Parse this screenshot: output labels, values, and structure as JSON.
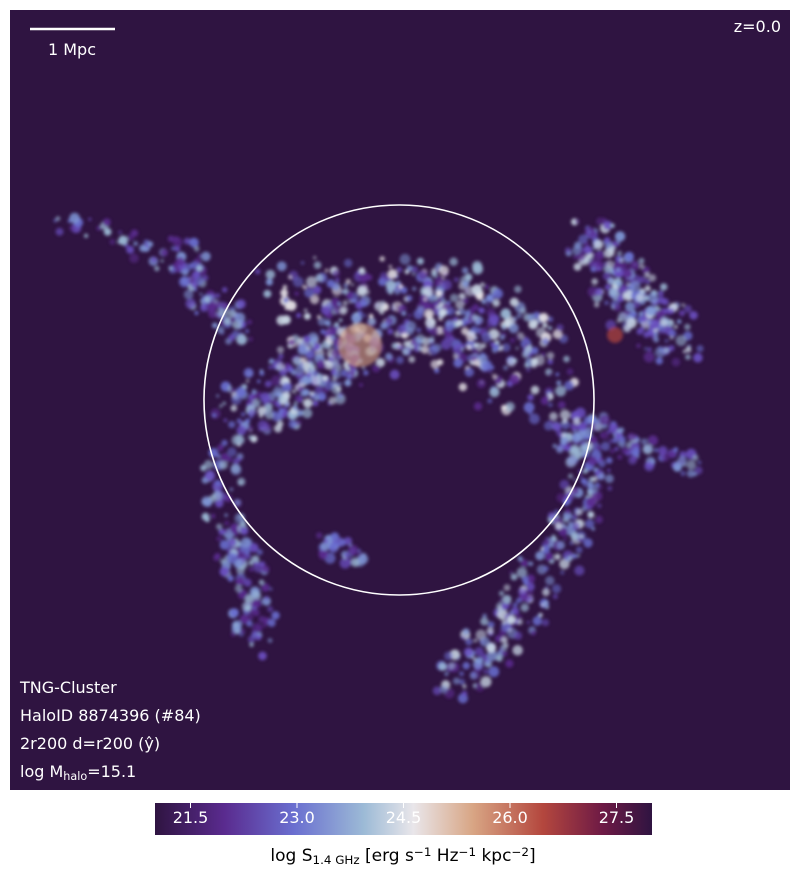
{
  "image": {
    "redshift": "z=0.0",
    "scale_bar": "1 Mpc",
    "annotations": [
      "TNG-Cluster",
      "HaloID 8874396 (#84)",
      "2r200 d=r200 (ŷ)"
    ],
    "mass_label": [
      {
        "text": "log M",
        "style": "normal"
      },
      {
        "text": "halo",
        "style": "sub"
      },
      {
        "text": "=15.1",
        "style": "normal"
      }
    ]
  },
  "colorbar": {
    "lim": [
      21,
      28
    ],
    "ticks": [
      21.5,
      {
        "value": 23,
        "label": "23.0"
      },
      24.5,
      {
        "value": 26,
        "label": "26.0"
      },
      27.5
    ],
    "label": [
      {
        "text": "log S",
        "style": "normal"
      },
      {
        "text": "1.4 GHz",
        "style": "sub"
      },
      {
        "text": " [erg s",
        "style": "normal"
      },
      {
        "text": "−1",
        "style": "sup"
      },
      {
        "text": " Hz",
        "style": "normal"
      },
      {
        "text": "−1",
        "style": "sup"
      },
      {
        "text": " kpc",
        "style": "normal"
      },
      {
        "text": "−2",
        "style": "sup"
      },
      {
        "text": "]",
        "style": "normal"
      }
    ]
  }
}
